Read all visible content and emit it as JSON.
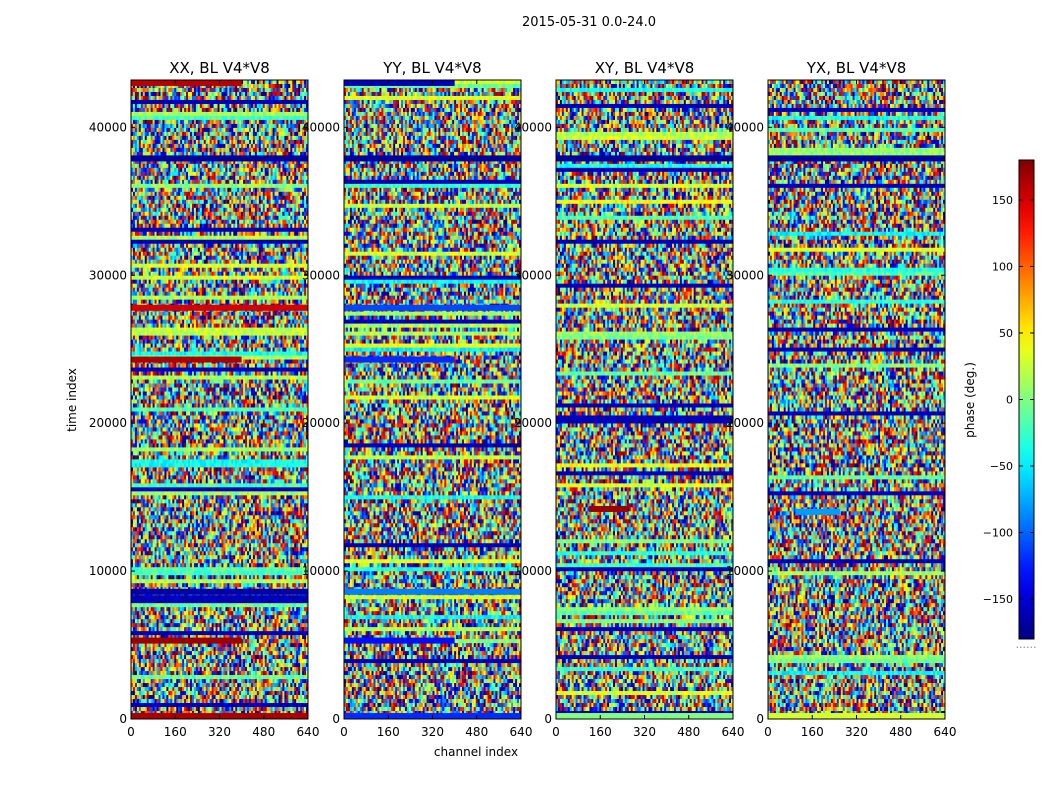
{
  "figure": {
    "suptitle": "2015-05-31 0.0-24.0",
    "xlabel": "channel index",
    "ylabel": "time index"
  },
  "colorbar": {
    "label": "phase (deg.)",
    "colormap": "jet",
    "range": [
      -180,
      180
    ],
    "ticks": [
      150,
      100,
      50,
      0,
      -50,
      -100,
      -150
    ],
    "tick_labels": [
      "150",
      "100",
      "50",
      "0",
      "−50",
      "−100",
      "−150"
    ],
    "footnote": "......"
  },
  "chart_data": [
    {
      "type": "heatmap",
      "title": "XX, BL V4*V8",
      "xlabel": "channel index",
      "ylabel": "time index",
      "xlim": [
        0,
        640
      ],
      "ylim": [
        0,
        43200
      ],
      "x_ticks": [
        0,
        160,
        320,
        480,
        640
      ],
      "y_ticks": [
        0,
        10000,
        20000,
        30000,
        40000
      ],
      "value_range": [
        -180,
        180
      ],
      "content": "noisy phase (deg.) waterfall with horizontal banding",
      "notable_bands": [
        {
          "time": 43000,
          "phase": 160,
          "channels": [
            0,
            400
          ]
        },
        {
          "time": 37900,
          "phase": -170,
          "channels": [
            0,
            640
          ]
        },
        {
          "time": 27800,
          "phase": 150,
          "channels": [
            0,
            640
          ]
        },
        {
          "time": 24300,
          "phase": 165,
          "channels": [
            0,
            400
          ]
        },
        {
          "time": 8600,
          "phase": -165,
          "channels": [
            0,
            640
          ]
        },
        {
          "time": 5300,
          "phase": 170,
          "channels": [
            0,
            400
          ]
        },
        {
          "time": 200,
          "phase": 165,
          "channels": [
            0,
            640
          ]
        }
      ]
    },
    {
      "type": "heatmap",
      "title": "YY, BL V4*V8",
      "xlabel": "channel index",
      "ylabel": "time index",
      "xlim": [
        0,
        640
      ],
      "ylim": [
        0,
        43200
      ],
      "x_ticks": [
        0,
        160,
        320,
        480,
        640
      ],
      "y_ticks": [
        0,
        10000,
        20000,
        30000,
        40000
      ],
      "value_range": [
        -180,
        180
      ],
      "content": "noisy phase (deg.) waterfall with horizontal banding",
      "notable_bands": [
        {
          "time": 43000,
          "phase": -160,
          "channels": [
            0,
            400
          ]
        },
        {
          "time": 37900,
          "phase": -170,
          "channels": [
            0,
            640
          ]
        },
        {
          "time": 27800,
          "phase": -110,
          "channels": [
            0,
            640
          ]
        },
        {
          "time": 24300,
          "phase": -120,
          "channels": [
            0,
            400
          ]
        },
        {
          "time": 8600,
          "phase": -90,
          "channels": [
            0,
            640
          ]
        },
        {
          "time": 5300,
          "phase": -130,
          "channels": [
            0,
            400
          ]
        },
        {
          "time": 200,
          "phase": -120,
          "channels": [
            0,
            640
          ]
        }
      ]
    },
    {
      "type": "heatmap",
      "title": "XY, BL V4*V8",
      "xlabel": "channel index",
      "ylabel": "time index",
      "xlim": [
        0,
        640
      ],
      "ylim": [
        0,
        43200
      ],
      "x_ticks": [
        0,
        160,
        320,
        480,
        640
      ],
      "y_ticks": [
        0,
        10000,
        20000,
        30000,
        40000
      ],
      "value_range": [
        -180,
        180
      ],
      "content": "noisy phase (deg.) waterfall with horizontal banding",
      "notable_bands": [
        {
          "time": 37900,
          "phase": -170,
          "channels": [
            0,
            640
          ]
        },
        {
          "time": 14200,
          "phase": 170,
          "channels": [
            120,
            260
          ]
        },
        {
          "time": 200,
          "phase": 0,
          "channels": [
            0,
            640
          ]
        }
      ]
    },
    {
      "type": "heatmap",
      "title": "YX, BL V4*V8",
      "xlabel": "channel index",
      "ylabel": "time index",
      "xlim": [
        0,
        640
      ],
      "ylim": [
        0,
        43200
      ],
      "x_ticks": [
        0,
        160,
        320,
        480,
        640
      ],
      "y_ticks": [
        0,
        10000,
        20000,
        30000,
        40000
      ],
      "value_range": [
        -180,
        180
      ],
      "content": "noisy phase (deg.) waterfall with horizontal banding",
      "notable_bands": [
        {
          "time": 37900,
          "phase": -170,
          "channels": [
            0,
            640
          ]
        },
        {
          "time": 14000,
          "phase": -80,
          "channels": [
            100,
            260
          ]
        },
        {
          "time": 200,
          "phase": 30,
          "channels": [
            0,
            640
          ]
        }
      ]
    }
  ]
}
